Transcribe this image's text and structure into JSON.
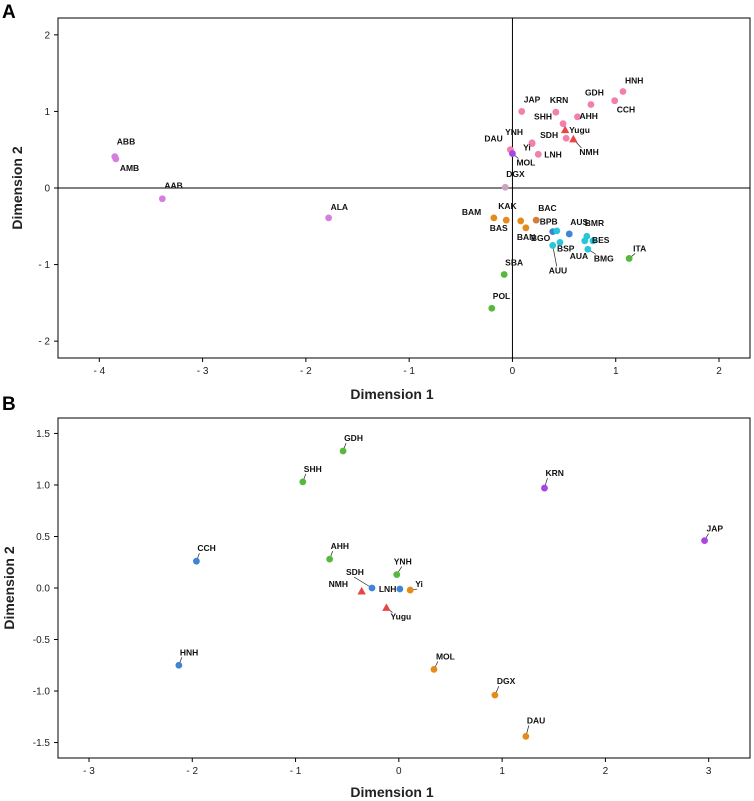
{
  "chart_data": [
    {
      "type": "scatter",
      "panel": "A",
      "xlabel": "Dimension 1",
      "ylabel": "Dimension 2",
      "xlim": [
        -4.4,
        2.3
      ],
      "ylim": [
        -2.22,
        2.22
      ],
      "xticks": [
        -4,
        -3,
        -2,
        -1,
        0,
        1,
        2
      ],
      "yticks": [
        -2,
        -1,
        0,
        1,
        2
      ],
      "xtick_labels": [
        "- 4",
        "- 3",
        "- 2",
        "- 1",
        "0",
        "1",
        "2"
      ],
      "ytick_labels": [
        "- 2",
        "- 1",
        "0",
        "1",
        "2"
      ],
      "reference_lines": [
        0,
        0
      ],
      "colors": {
        "pink": "#f27fae",
        "purple": "#a945e6",
        "violet": "#d67ee0",
        "orange": "#e38c1a",
        "blue": "#3e86d4",
        "cyan": "#28c6d9",
        "green": "#56b93d",
        "red": "#e84545",
        "grey": "#c9a3bf",
        "brownorange": "#d17e3c"
      },
      "points": [
        {
          "label": "HNH",
          "x": 1.07,
          "y": 1.26,
          "color": "pink",
          "marker": "circle"
        },
        {
          "label": "GDH",
          "x": 0.76,
          "y": 1.09,
          "color": "pink",
          "marker": "circle"
        },
        {
          "label": "CCH",
          "x": 0.99,
          "y": 1.14,
          "color": "pink",
          "marker": "circle"
        },
        {
          "label": "KRN",
          "x": 0.42,
          "y": 0.99,
          "color": "pink",
          "marker": "circle"
        },
        {
          "label": "AHH",
          "x": 0.63,
          "y": 0.93,
          "color": "pink",
          "marker": "circle"
        },
        {
          "label": "JAP",
          "x": 0.09,
          "y": 1.0,
          "color": "pink",
          "marker": "circle"
        },
        {
          "label": "SHH",
          "x": 0.49,
          "y": 0.84,
          "color": "pink",
          "marker": "circle"
        },
        {
          "label": "Yugu",
          "x": 0.51,
          "y": 0.76,
          "color": "red",
          "marker": "triangle"
        },
        {
          "label": "SDH",
          "x": 0.52,
          "y": 0.65,
          "color": "pink",
          "marker": "circle"
        },
        {
          "label": "NMH",
          "x": 0.59,
          "y": 0.64,
          "color": "red",
          "marker": "triangle"
        },
        {
          "label": "YNH",
          "x": 0.19,
          "y": 0.59,
          "color": "pink",
          "marker": "circle"
        },
        {
          "label": "Yi",
          "x": 0.19,
          "y": 0.58,
          "color": "pink",
          "marker": "circle"
        },
        {
          "label": "LNH",
          "x": 0.25,
          "y": 0.44,
          "color": "pink",
          "marker": "circle"
        },
        {
          "label": "DAU",
          "x": -0.02,
          "y": 0.5,
          "color": "pink",
          "marker": "circle"
        },
        {
          "label": "MOL",
          "x": 0.0,
          "y": 0.45,
          "color": "purple",
          "marker": "circle"
        },
        {
          "label": "DGX",
          "x": -0.07,
          "y": 0.01,
          "color": "grey",
          "marker": "circle"
        },
        {
          "label": "ABB",
          "x": -3.85,
          "y": 0.41,
          "color": "violet",
          "marker": "circle"
        },
        {
          "label": "AMB",
          "x": -3.84,
          "y": 0.38,
          "color": "violet",
          "marker": "circle"
        },
        {
          "label": "AAB",
          "x": -3.39,
          "y": -0.14,
          "color": "violet",
          "marker": "circle"
        },
        {
          "label": "ALA",
          "x": -1.78,
          "y": -0.39,
          "color": "violet",
          "marker": "circle"
        },
        {
          "label": "BAM",
          "x": -0.18,
          "y": -0.39,
          "color": "orange",
          "marker": "circle"
        },
        {
          "label": "KAK",
          "x": -0.06,
          "y": -0.42,
          "color": "orange",
          "marker": "circle"
        },
        {
          "label": "BAC",
          "x": 0.23,
          "y": -0.42,
          "color": "brownorange",
          "marker": "circle"
        },
        {
          "label": "BAS",
          "x": 0.08,
          "y": -0.43,
          "color": "orange",
          "marker": "circle"
        },
        {
          "label": "BAN",
          "x": 0.13,
          "y": -0.52,
          "color": "orange",
          "marker": "circle"
        },
        {
          "label": "BPB",
          "x": 0.39,
          "y": -0.57,
          "color": "blue",
          "marker": "circle"
        },
        {
          "label": "AUS",
          "x": 0.55,
          "y": -0.6,
          "color": "blue",
          "marker": "circle"
        },
        {
          "label": "BMR",
          "x": 0.72,
          "y": -0.63,
          "color": "cyan",
          "marker": "circle"
        },
        {
          "label": "BGO",
          "x": 0.43,
          "y": -0.56,
          "color": "cyan",
          "marker": "circle"
        },
        {
          "label": "BSP",
          "x": 0.46,
          "y": -0.71,
          "color": "cyan",
          "marker": "circle"
        },
        {
          "label": "BES",
          "x": 0.78,
          "y": -0.69,
          "color": "cyan",
          "marker": "circle"
        },
        {
          "label": "AUU",
          "x": 0.39,
          "y": -0.75,
          "color": "cyan",
          "marker": "circle"
        },
        {
          "label": "BMG",
          "x": 0.73,
          "y": -0.8,
          "color": "cyan",
          "marker": "circle"
        },
        {
          "label": "AUA",
          "x": 0.7,
          "y": -0.69,
          "color": "cyan",
          "marker": "circle"
        },
        {
          "label": "ITA",
          "x": 1.13,
          "y": -0.92,
          "color": "green",
          "marker": "circle"
        },
        {
          "label": "SBA",
          "x": -0.08,
          "y": -1.13,
          "color": "green",
          "marker": "circle"
        },
        {
          "label": "POL",
          "x": -0.2,
          "y": -1.57,
          "color": "green",
          "marker": "circle"
        }
      ]
    },
    {
      "type": "scatter",
      "panel": "B",
      "xlabel": "Dimension 1",
      "ylabel": "Dimension 2",
      "xlim": [
        -3.3,
        3.4
      ],
      "ylim": [
        -1.65,
        1.65
      ],
      "xticks": [
        -3,
        -2,
        -1,
        0,
        1,
        2,
        3
      ],
      "yticks": [
        -1.5,
        -1.0,
        -0.5,
        0.0,
        0.5,
        1.0,
        1.5
      ],
      "xtick_labels": [
        "- 3",
        "- 2",
        "- 1",
        "0",
        "1",
        "2",
        "3"
      ],
      "ytick_labels": [
        "-1.5",
        "-1.0",
        "-0.5",
        "0.0",
        "0.5",
        "1.0",
        "1.5"
      ],
      "colors": {
        "green": "#56b93d",
        "blue": "#3e86d4",
        "purple": "#a945e6",
        "orange": "#e38c1a",
        "red": "#e84545"
      },
      "points": [
        {
          "label": "GDH",
          "x": -0.54,
          "y": 1.33,
          "color": "green",
          "marker": "circle"
        },
        {
          "label": "SHH",
          "x": -0.93,
          "y": 1.03,
          "color": "green",
          "marker": "circle"
        },
        {
          "label": "KRN",
          "x": 1.41,
          "y": 0.97,
          "color": "purple",
          "marker": "circle"
        },
        {
          "label": "JAP",
          "x": 2.96,
          "y": 0.46,
          "color": "purple",
          "marker": "circle"
        },
        {
          "label": "CCH",
          "x": -1.96,
          "y": 0.26,
          "color": "blue",
          "marker": "circle"
        },
        {
          "label": "AHH",
          "x": -0.67,
          "y": 0.28,
          "color": "green",
          "marker": "circle"
        },
        {
          "label": "YNH",
          "x": -0.02,
          "y": 0.13,
          "color": "green",
          "marker": "circle"
        },
        {
          "label": "SDH",
          "x": -0.26,
          "y": 0.0,
          "color": "blue",
          "marker": "circle"
        },
        {
          "label": "NMH",
          "x": -0.36,
          "y": -0.03,
          "color": "red",
          "marker": "triangle"
        },
        {
          "label": "LNH",
          "x": 0.01,
          "y": -0.01,
          "color": "blue",
          "marker": "circle"
        },
        {
          "label": "Yi",
          "x": 0.11,
          "y": -0.02,
          "color": "orange",
          "marker": "circle"
        },
        {
          "label": "Yugu",
          "x": -0.12,
          "y": -0.19,
          "color": "red",
          "marker": "triangle"
        },
        {
          "label": "HNH",
          "x": -2.13,
          "y": -0.75,
          "color": "blue",
          "marker": "circle"
        },
        {
          "label": "MOL",
          "x": 0.34,
          "y": -0.79,
          "color": "orange",
          "marker": "circle"
        },
        {
          "label": "DGX",
          "x": 0.93,
          "y": -1.04,
          "color": "orange",
          "marker": "circle"
        },
        {
          "label": "DAU",
          "x": 1.23,
          "y": -1.44,
          "color": "orange",
          "marker": "circle"
        }
      ]
    }
  ]
}
